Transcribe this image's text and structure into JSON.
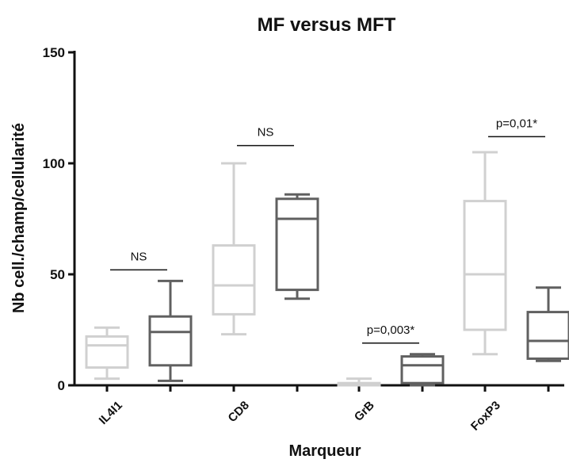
{
  "chart_data": {
    "type": "box",
    "title": "MF versus MFT",
    "xlabel": "Marqueur",
    "ylabel": "Nb cell./champ/cellularité",
    "ylim": [
      0,
      150
    ],
    "yticks": [
      0,
      50,
      100,
      150
    ],
    "categories": [
      "IL4I1",
      "CD8",
      "GrB",
      "FoxP3"
    ],
    "series": [
      {
        "color": "#d0d0d0",
        "boxes": [
          {
            "min": 3,
            "q1": 8,
            "median": 18,
            "q3": 22,
            "max": 26
          },
          {
            "min": 23,
            "q1": 32,
            "median": 45,
            "q3": 63,
            "max": 100
          },
          {
            "min": 0,
            "q1": 0,
            "median": 0.5,
            "q3": 1,
            "max": 3
          },
          {
            "min": 14,
            "q1": 25,
            "median": 50,
            "q3": 83,
            "max": 105
          }
        ]
      },
      {
        "color": "#606060",
        "boxes": [
          {
            "min": 2,
            "q1": 9,
            "median": 24,
            "q3": 31,
            "max": 47
          },
          {
            "min": 39,
            "q1": 43,
            "median": 75,
            "q3": 84,
            "max": 86
          },
          {
            "min": 0,
            "q1": 1,
            "median": 9,
            "q3": 13,
            "max": 14
          },
          {
            "min": 11,
            "q1": 12,
            "median": 20,
            "q3": 33,
            "max": 44
          }
        ]
      }
    ],
    "annotations": [
      {
        "category": "IL4I1",
        "text": "NS",
        "y": 52
      },
      {
        "category": "CD8",
        "text": "NS",
        "y": 108
      },
      {
        "category": "GrB",
        "text": "p=0,003*",
        "y": 19
      },
      {
        "category": "FoxP3",
        "text": "p=0,01*",
        "y": 112
      }
    ]
  }
}
